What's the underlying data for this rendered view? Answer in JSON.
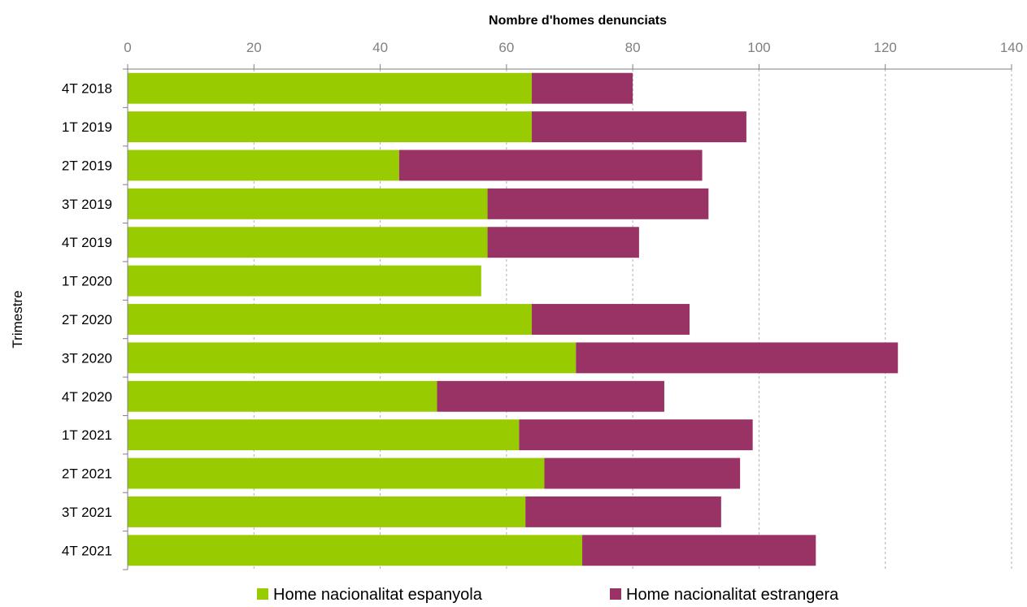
{
  "chart_data": {
    "type": "bar",
    "orientation": "horizontal",
    "stacked": true,
    "xlabel": "Nombre d'homes denunciats",
    "ylabel": "Trimestre",
    "xlim": [
      0,
      140
    ],
    "xticks": [
      "0",
      "20",
      "40",
      "60",
      "80",
      "100",
      "120",
      "140"
    ],
    "x_axis_position": "top",
    "grid": "vertical dashed",
    "legend_placement": "bottom",
    "categories": [
      "4T 2018",
      "1T 2019",
      "2T 2019",
      "3T 2019",
      "4T 2019",
      "1T 2020",
      "2T 2020",
      "3T 2020",
      "4T 2020",
      "1T 2021",
      "2T 2021",
      "3T 2021",
      "4T 2021"
    ],
    "series": [
      {
        "name": "Home nacionalitat espanyola",
        "color": "#99CC00",
        "values": [
          64,
          64,
          43,
          57,
          57,
          56,
          64,
          71,
          49,
          62,
          66,
          63,
          72
        ]
      },
      {
        "name": "Home nacionalitat estrangera",
        "color": "#993366",
        "values": [
          16,
          34,
          48,
          35,
          24,
          0,
          25,
          51,
          36,
          37,
          31,
          31,
          37
        ]
      }
    ]
  }
}
